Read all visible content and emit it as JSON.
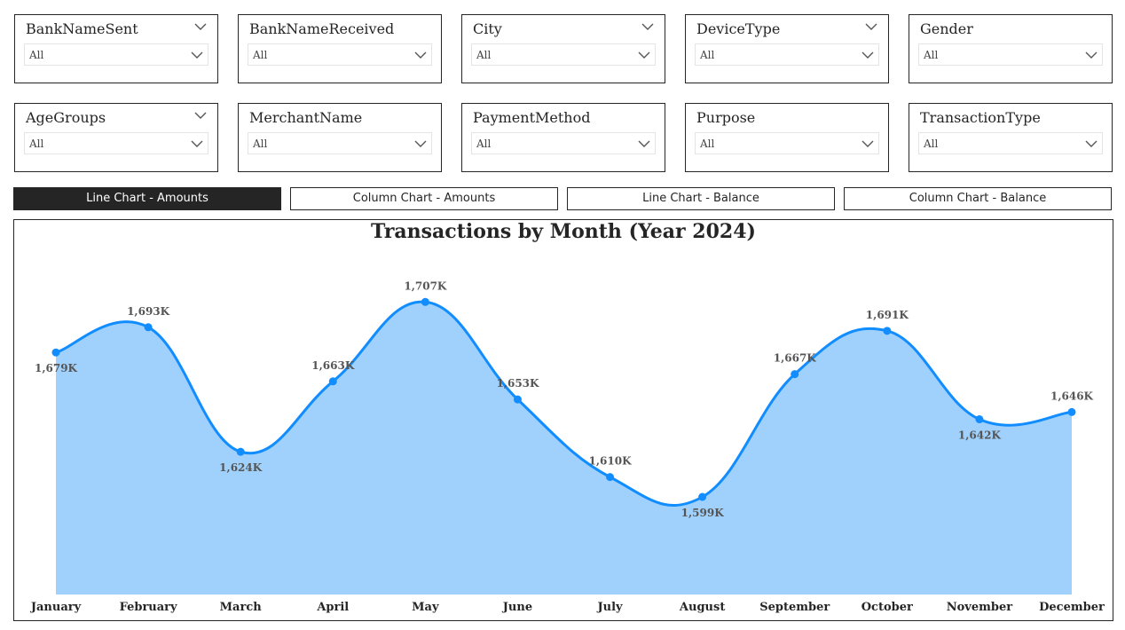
{
  "slicers": [
    {
      "title": "BankNameSent",
      "value": "All",
      "chevron": true
    },
    {
      "title": "BankNameReceived",
      "value": "All",
      "chevron": false
    },
    {
      "title": "City",
      "value": "All",
      "chevron": true
    },
    {
      "title": "DeviceType",
      "value": "All",
      "chevron": true
    },
    {
      "title": "Gender",
      "value": "All",
      "chevron": false
    },
    {
      "title": "AgeGroups",
      "value": "All",
      "chevron": true
    },
    {
      "title": "MerchantName",
      "value": "All",
      "chevron": false
    },
    {
      "title": "PaymentMethod",
      "value": "All",
      "chevron": false
    },
    {
      "title": "Purpose",
      "value": "All",
      "chevron": false
    },
    {
      "title": "TransactionType",
      "value": "All",
      "chevron": false
    }
  ],
  "tabs": [
    {
      "label": "Line Chart - Amounts",
      "active": true
    },
    {
      "label": "Column Chart - Amounts",
      "active": false
    },
    {
      "label": "Line Chart - Balance",
      "active": false
    },
    {
      "label": "Column Chart - Balance",
      "active": false
    }
  ],
  "chart_data": {
    "type": "area",
    "title": "Transactions by Month (Year 2024)",
    "categories": [
      "January",
      "February",
      "March",
      "April",
      "May",
      "June",
      "July",
      "August",
      "September",
      "October",
      "November",
      "December"
    ],
    "values": [
      1679,
      1693,
      1624,
      1663,
      1707,
      1653,
      1610,
      1599,
      1667,
      1691,
      1642,
      1646
    ],
    "data_labels": [
      "1,679K",
      "1,693K",
      "1,624K",
      "1,663K",
      "1,707K",
      "1,653K",
      "1,610K",
      "1,599K",
      "1,667K",
      "1,691K",
      "1,642K",
      "1,646K"
    ],
    "label_position": [
      "below",
      "above",
      "below",
      "above",
      "above",
      "above",
      "above",
      "below",
      "above",
      "above",
      "below",
      "above"
    ],
    "units": "K",
    "ylim": [
      1570,
      1715
    ],
    "line_color": "#118DFF",
    "fill_color": "#A0D1FC",
    "grid": false,
    "legend": "none"
  }
}
